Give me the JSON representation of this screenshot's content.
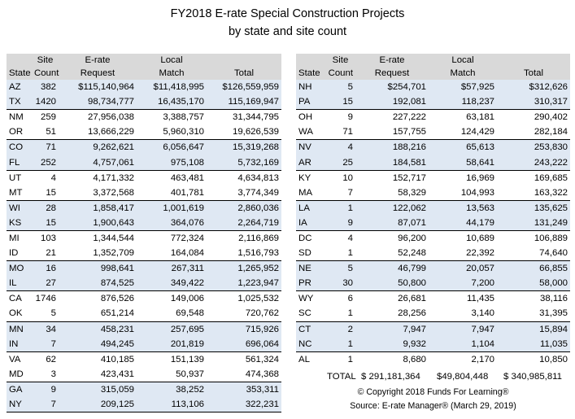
{
  "title": {
    "line1": "FY2018 E-rate Special Construction Projects",
    "line2": "by state and site count"
  },
  "headers": {
    "state": "State",
    "site_top": "Site",
    "site_bottom": "Count",
    "erate_top": "E-rate",
    "erate_bottom": "Request",
    "local_top": "Local",
    "local_bottom": "Match",
    "total": "Total"
  },
  "left_rows": [
    [
      "AZ",
      "382",
      "$115,140,964",
      "$11,418,995",
      "$126,559,959"
    ],
    [
      "TX",
      "1420",
      "98,734,777",
      "16,435,170",
      "115,169,947"
    ],
    [
      "NM",
      "259",
      "27,956,038",
      "3,388,757",
      "31,344,795"
    ],
    [
      "OR",
      "51",
      "13,666,229",
      "5,960,310",
      "19,626,539"
    ],
    [
      "CO",
      "71",
      "9,262,621",
      "6,056,647",
      "15,319,268"
    ],
    [
      "FL",
      "252",
      "4,757,061",
      "975,108",
      "5,732,169"
    ],
    [
      "UT",
      "4",
      "4,171,332",
      "463,481",
      "4,634,813"
    ],
    [
      "MT",
      "15",
      "3,372,568",
      "401,781",
      "3,774,349"
    ],
    [
      "WI",
      "28",
      "1,858,417",
      "1,001,619",
      "2,860,036"
    ],
    [
      "KS",
      "15",
      "1,900,643",
      "364,076",
      "2,264,719"
    ],
    [
      "MI",
      "103",
      "1,344,544",
      "772,324",
      "2,116,869"
    ],
    [
      "ID",
      "21",
      "1,352,709",
      "164,084",
      "1,516,793"
    ],
    [
      "MO",
      "16",
      "998,641",
      "267,311",
      "1,265,952"
    ],
    [
      "IL",
      "27",
      "874,525",
      "349,422",
      "1,223,947"
    ],
    [
      "CA",
      "1746",
      "876,526",
      "149,006",
      "1,025,532"
    ],
    [
      "OK",
      "5",
      "651,214",
      "69,548",
      "720,762"
    ],
    [
      "MN",
      "34",
      "458,231",
      "257,695",
      "715,926"
    ],
    [
      "IN",
      "7",
      "494,245",
      "201,819",
      "696,064"
    ],
    [
      "VA",
      "62",
      "410,185",
      "151,139",
      "561,324"
    ],
    [
      "MD",
      "3",
      "423,431",
      "50,937",
      "474,368"
    ],
    [
      "GA",
      "9",
      "315,059",
      "38,252",
      "353,311"
    ],
    [
      "NY",
      "7",
      "209,125",
      "113,106",
      "322,231"
    ]
  ],
  "right_rows": [
    [
      "NH",
      "5",
      "$254,701",
      "$57,925",
      "$312,626"
    ],
    [
      "PA",
      "15",
      "192,081",
      "118,237",
      "310,317"
    ],
    [
      "OH",
      "9",
      "227,222",
      "63,181",
      "290,402"
    ],
    [
      "WA",
      "71",
      "157,755",
      "124,429",
      "282,184"
    ],
    [
      "NV",
      "4",
      "188,216",
      "65,613",
      "253,830"
    ],
    [
      "AR",
      "25",
      "184,581",
      "58,641",
      "243,222"
    ],
    [
      "KY",
      "10",
      "152,717",
      "16,969",
      "169,685"
    ],
    [
      "MA",
      "7",
      "58,329",
      "104,993",
      "163,322"
    ],
    [
      "LA",
      "1",
      "122,062",
      "13,563",
      "135,625"
    ],
    [
      "IA",
      "9",
      "87,071",
      "44,179",
      "131,249"
    ],
    [
      "DC",
      "4",
      "96,200",
      "10,689",
      "106,889"
    ],
    [
      "SD",
      "1",
      "52,248",
      "22,392",
      "74,640"
    ],
    [
      "NE",
      "5",
      "46,799",
      "20,057",
      "66,855"
    ],
    [
      "PR",
      "30",
      "50,800",
      "7,200",
      "58,000"
    ],
    [
      "WY",
      "6",
      "26,681",
      "11,435",
      "38,116"
    ],
    [
      "SC",
      "1",
      "28,256",
      "3,140",
      "31,395"
    ],
    [
      "CT",
      "2",
      "7,947",
      "7,947",
      "15,894"
    ],
    [
      "NC",
      "1",
      "9,932",
      "1,104",
      "11,035"
    ],
    [
      "AL",
      "1",
      "8,680",
      "2,170",
      "10,850"
    ]
  ],
  "totals": {
    "label": "TOTAL",
    "erate": "$ 291,181,364",
    "local": "$49,804,448",
    "total": "$ 340,985,811"
  },
  "footer": {
    "copyright": "© Copyright 2018 Funds For Learning®",
    "source": "Source: E-rate Manager® (March 29, 2019)"
  }
}
